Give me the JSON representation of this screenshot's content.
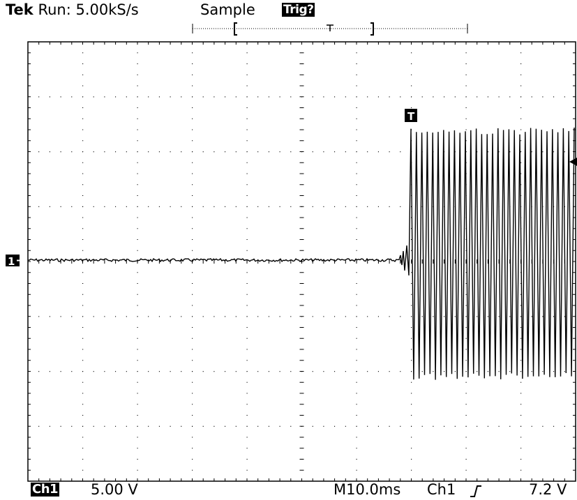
{
  "header": {
    "brand": "Tek",
    "status": "Run: 5.00kS/s",
    "acq_mode": "Sample",
    "trigger_status": "Trig?"
  },
  "markers": {
    "channel": "1",
    "trigger": "T"
  },
  "footer": {
    "channel": "Ch1",
    "volts_per_div": "5.00 V",
    "timebase": "M10.0ms",
    "trigger_source": "Ch1",
    "trigger_level": "7.2 V"
  },
  "colors": {
    "trace": "#000000",
    "background": "#ffffff"
  }
}
